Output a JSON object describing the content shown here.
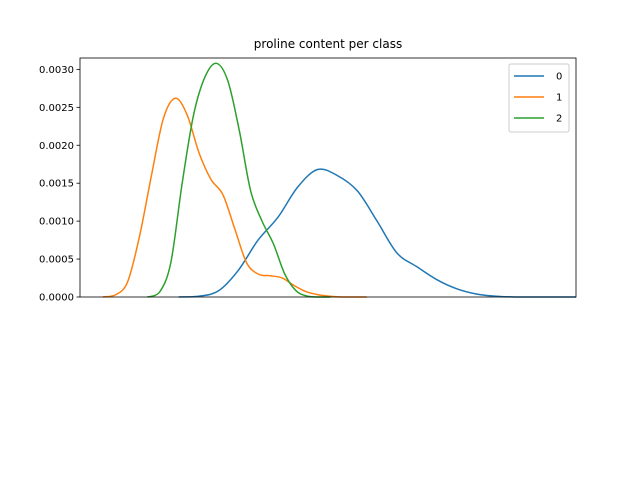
{
  "chart_data": {
    "type": "line",
    "title": "proline content per class",
    "xlabel": "",
    "ylabel": "",
    "xlim": [
      0,
      100
    ],
    "ylim": [
      0,
      0.00315
    ],
    "yticks": [
      "0.0000",
      "0.0005",
      "0.0010",
      "0.0015",
      "0.0020",
      "0.0025",
      "0.0030"
    ],
    "ytick_values": [
      0,
      0.0005,
      0.001,
      0.0015,
      0.002,
      0.0025,
      0.003
    ],
    "legend_position": "top-right",
    "series": [
      {
        "name": "0",
        "color": "#1f77b4",
        "x": [
          19.9,
          23.9,
          27.9,
          31.9,
          35.9,
          39.9,
          43.9,
          47.9,
          51.9,
          55.9,
          59.9,
          63.9,
          67.9,
          71.9,
          75.9,
          79.9,
          83.9,
          87.9,
          91.9,
          95.9,
          100.0
        ],
        "y": [
          0.0,
          1e-05,
          8e-05,
          0.00035,
          0.00075,
          0.00105,
          0.00145,
          0.00168,
          0.0016,
          0.0014,
          0.001,
          0.00058,
          0.0004,
          0.00023,
          0.00011,
          4e-05,
          1e-05,
          0.0,
          0.0,
          0.0,
          0.0
        ]
      },
      {
        "name": "1",
        "color": "#ff7f0e",
        "x": [
          4.6,
          7.2,
          9.6,
          12.0,
          14.4,
          16.8,
          19.2,
          21.6,
          24.0,
          26.4,
          28.8,
          31.2,
          33.6,
          36.0,
          38.4,
          40.8,
          43.2,
          45.6,
          48.0,
          50.4,
          52.8,
          55.2,
          57.8
        ],
        "y": [
          0.0,
          3e-05,
          0.0002,
          0.0008,
          0.0016,
          0.00235,
          0.00262,
          0.0024,
          0.0019,
          0.00155,
          0.00135,
          0.0009,
          0.00045,
          0.0003,
          0.00028,
          0.00025,
          0.00015,
          7e-05,
          3e-05,
          1e-05,
          0.0,
          0.0,
          0.0
        ]
      },
      {
        "name": "2",
        "color": "#2ca02c",
        "x": [
          13.6,
          16.0,
          18.3,
          20.6,
          22.9,
          25.2,
          27.5,
          29.8,
          32.1,
          34.4,
          36.7,
          39.0,
          41.3,
          43.6,
          45.9,
          48.2,
          50.5
        ],
        "y": [
          0.0,
          6e-05,
          0.00045,
          0.0015,
          0.0024,
          0.0029,
          0.00308,
          0.00285,
          0.0022,
          0.0014,
          0.001,
          0.0007,
          0.0003,
          8e-05,
          1e-05,
          0.0,
          0.0
        ]
      }
    ]
  }
}
